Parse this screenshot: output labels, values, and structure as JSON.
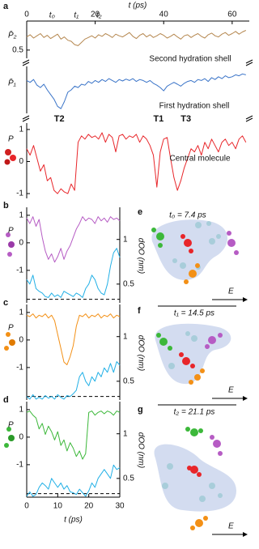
{
  "chart_data": [
    {
      "type": "line",
      "panel": "a",
      "xlabel": "t (ps)",
      "ylabel": "P̄₂",
      "xlim": [
        0,
        65
      ],
      "xticks": [
        0,
        20,
        40,
        60
      ],
      "ylim": [
        0.35,
        1.0
      ],
      "yticks": [
        0.5
      ],
      "annotations": [
        {
          "text": "t₀",
          "x": 7.4
        },
        {
          "text": "t₁",
          "x": 14.5
        },
        {
          "text": "t₂",
          "x": 21.1
        }
      ],
      "x": [
        0,
        1,
        2,
        3,
        4,
        5,
        6,
        7,
        8,
        9,
        10,
        11,
        12,
        13,
        14,
        15,
        16,
        17,
        18,
        19,
        20,
        21,
        22,
        23,
        24,
        25,
        26,
        27,
        28,
        29,
        30,
        31,
        32,
        33,
        34,
        35,
        36,
        37,
        38,
        39,
        40,
        41,
        42,
        43,
        44,
        45,
        46,
        47,
        48,
        49,
        50,
        51,
        52,
        53,
        54,
        55,
        56,
        57,
        58,
        59,
        60,
        61,
        62,
        63,
        64
      ],
      "series": [
        {
          "name": "Second hydration shell",
          "color": "#b5874f",
          "values": [
            0.74,
            0.78,
            0.72,
            0.76,
            0.8,
            0.73,
            0.77,
            0.71,
            0.75,
            0.79,
            0.7,
            0.74,
            0.68,
            0.66,
            0.6,
            0.58,
            0.64,
            0.7,
            0.73,
            0.76,
            0.72,
            0.78,
            0.75,
            0.8,
            0.77,
            0.73,
            0.79,
            0.76,
            0.74,
            0.78,
            0.82,
            0.75,
            0.71,
            0.77,
            0.8,
            0.74,
            0.78,
            0.73,
            0.76,
            0.8,
            0.77,
            0.72,
            0.75,
            0.79,
            0.74,
            0.7,
            0.76,
            0.78,
            0.73,
            0.77,
            0.8,
            0.75,
            0.72,
            0.78,
            0.81,
            0.76,
            0.74,
            0.79,
            0.82,
            0.77,
            0.8,
            0.84,
            0.79,
            0.83,
            0.86
          ]
        }
      ]
    },
    {
      "type": "line",
      "ylabel": "P̄₁",
      "xlim": [
        0,
        65
      ],
      "ylim": [
        0,
        1
      ],
      "x": [
        0,
        1,
        2,
        3,
        4,
        5,
        6,
        7,
        8,
        9,
        10,
        11,
        12,
        13,
        14,
        15,
        16,
        17,
        18,
        19,
        20,
        21,
        22,
        23,
        24,
        25,
        26,
        27,
        28,
        29,
        30,
        31,
        32,
        33,
        34,
        35,
        36,
        37,
        38,
        39,
        40,
        41,
        42,
        43,
        44,
        45,
        46,
        47,
        48,
        49,
        50,
        51,
        52,
        53,
        54,
        55,
        56,
        57,
        58,
        59,
        60,
        61,
        62,
        63,
        64
      ],
      "series": [
        {
          "name": "First hydration shell",
          "color": "#3a74c8",
          "values": [
            0.7,
            0.66,
            0.72,
            0.6,
            0.55,
            0.62,
            0.5,
            0.4,
            0.3,
            0.15,
            0.1,
            0.25,
            0.45,
            0.5,
            0.58,
            0.55,
            0.62,
            0.6,
            0.68,
            0.64,
            0.7,
            0.66,
            0.72,
            0.68,
            0.74,
            0.7,
            0.66,
            0.72,
            0.69,
            0.73,
            0.7,
            0.74,
            0.68,
            0.72,
            0.7,
            0.66,
            0.7,
            0.64,
            0.6,
            0.55,
            0.48,
            0.58,
            0.62,
            0.66,
            0.62,
            0.58,
            0.64,
            0.68,
            0.7,
            0.66,
            0.72,
            0.7,
            0.74,
            0.68,
            0.76,
            0.72,
            0.78,
            0.74,
            0.8,
            0.76,
            0.78,
            0.82,
            0.8,
            0.84,
            0.82
          ]
        }
      ]
    },
    {
      "type": "line",
      "ylabel": "P",
      "xlim": [
        0,
        65
      ],
      "ylim": [
        -1.15,
        1.2
      ],
      "yticks": [
        -1,
        0,
        1
      ],
      "annotations": [
        {
          "text": "T2",
          "x": 9.5
        },
        {
          "text": "T1",
          "x": 38.5
        },
        {
          "text": "T3",
          "x": 46.5
        }
      ],
      "x": [
        0,
        1,
        2,
        3,
        4,
        5,
        6,
        7,
        8,
        9,
        10,
        11,
        12,
        13,
        14,
        15,
        16,
        17,
        18,
        19,
        20,
        21,
        22,
        23,
        24,
        25,
        26,
        27,
        28,
        29,
        30,
        31,
        32,
        33,
        34,
        35,
        36,
        37,
        38,
        39,
        40,
        41,
        42,
        43,
        44,
        45,
        46,
        47,
        48,
        49,
        50,
        51,
        52,
        53,
        54,
        55,
        56,
        57,
        58,
        59,
        60,
        61,
        62,
        63,
        64
      ],
      "series": [
        {
          "name": "Central molecule",
          "color": "#e8262a",
          "values": [
            0.4,
            0.2,
            0.5,
            0.1,
            -0.3,
            -0.1,
            -0.6,
            -0.5,
            -0.9,
            -1,
            -0.85,
            -0.95,
            -1,
            -0.7,
            -0.9,
            0.6,
            0.8,
            0.7,
            0.85,
            0.75,
            0.8,
            0.7,
            0.9,
            0.6,
            0.85,
            0.75,
            0.3,
            0.8,
            0.85,
            0.7,
            0.8,
            0.75,
            0.85,
            0.6,
            0.8,
            0.7,
            0.5,
            0.2,
            -0.8,
            0.3,
            0.7,
            0.75,
            0.1,
            -0.5,
            -0.9,
            -0.6,
            -0.2,
            0.1,
            0.4,
            0.3,
            0.5,
            0.2,
            0.6,
            0.4,
            0.7,
            0.5,
            0.3,
            0.6,
            0.7,
            0.5,
            0.6,
            0.4,
            0.7,
            0.8,
            0.6
          ]
        }
      ]
    },
    {
      "type": "line",
      "panel": "b",
      "ylabel": "P",
      "y2label": "dOO (nm)",
      "xlim": [
        0,
        30
      ],
      "ylim": [
        -2.18,
        1.29
      ],
      "yticks": [
        -1,
        0,
        1
      ],
      "y2lim": [
        0.29,
        1.36
      ],
      "y2ticks": [
        0.5,
        1
      ],
      "hline": 0.33,
      "x": [
        0,
        1,
        2,
        3,
        4,
        5,
        6,
        7,
        8,
        9,
        10,
        11,
        12,
        13,
        14,
        15,
        16,
        17,
        18,
        19,
        20,
        21,
        22,
        23,
        24,
        25,
        26,
        27,
        28,
        29,
        30
      ],
      "series": [
        {
          "color": "#b65cc4",
          "values": [
            0.9,
            0.7,
            0.95,
            0.6,
            0.85,
            0.2,
            -0.3,
            -0.6,
            -0.4,
            -0.7,
            -0.5,
            -0.2,
            -0.6,
            -0.3,
            -0.1,
            0.2,
            0.5,
            0.7,
            0.95,
            0.8,
            0.9,
            0.85,
            0.7,
            0.95,
            0.8,
            0.9,
            0.75,
            0.95,
            0.85,
            0.9,
            0.8
          ]
        },
        {
          "color": "#22b0e6",
          "axis": "y2",
          "values": [
            0.55,
            0.5,
            0.6,
            0.45,
            0.42,
            0.4,
            0.36,
            0.35,
            0.4,
            0.36,
            0.38,
            0.35,
            0.42,
            0.4,
            0.38,
            0.36,
            0.4,
            0.38,
            0.35,
            0.45,
            0.5,
            0.6,
            0.55,
            0.45,
            0.4,
            0.38,
            0.5,
            0.7,
            0.85,
            0.9,
            0.8
          ]
        }
      ]
    },
    {
      "type": "line",
      "panel": "c",
      "ylabel": "P",
      "y2label": "dOO (nm)",
      "xlim": [
        0,
        30
      ],
      "ylim": [
        -2.18,
        1.29
      ],
      "yticks": [
        -1,
        0,
        1
      ],
      "y2lim": [
        0.29,
        1.36
      ],
      "y2ticks": [
        0.5,
        1
      ],
      "hline": 0.33,
      "x": [
        0,
        1,
        2,
        3,
        4,
        5,
        6,
        7,
        8,
        9,
        10,
        11,
        12,
        13,
        14,
        15,
        16,
        17,
        18,
        19,
        20,
        21,
        22,
        23,
        24,
        25,
        26,
        27,
        28,
        29,
        30
      ],
      "series": [
        {
          "color": "#f39016",
          "values": [
            0.9,
            0.85,
            0.95,
            0.8,
            0.9,
            0.85,
            0.95,
            0.8,
            0.9,
            0.7,
            0.2,
            -0.3,
            -0.8,
            -0.9,
            -0.6,
            -0.2,
            0.5,
            0.9,
            0.85,
            0.95,
            0.8,
            0.9,
            0.85,
            0.95,
            0.8,
            0.9,
            0.85,
            0.95,
            0.8,
            0.9,
            0.85
          ]
        },
        {
          "color": "#22b0e6",
          "axis": "y2",
          "values": [
            0.33,
            0.3,
            0.35,
            0.3,
            0.32,
            0.3,
            0.34,
            0.31,
            0.33,
            0.3,
            0.35,
            0.32,
            0.3,
            0.34,
            0.33,
            0.36,
            0.4,
            0.55,
            0.6,
            0.5,
            0.45,
            0.55,
            0.5,
            0.6,
            0.55,
            0.65,
            0.6,
            0.7,
            0.6,
            0.72,
            0.68
          ]
        }
      ]
    },
    {
      "type": "line",
      "panel": "d",
      "ylabel": "P",
      "y2label": "dOO (nm)",
      "xlabel": "t (ps)",
      "xlim": [
        0,
        30
      ],
      "xticks": [
        0,
        10,
        20,
        30
      ],
      "ylim": [
        -2.18,
        1.29
      ],
      "yticks": [
        -1,
        0,
        1
      ],
      "y2lim": [
        0.29,
        1.36
      ],
      "y2ticks": [
        0.5,
        1
      ],
      "hline": 0.33,
      "x": [
        0,
        1,
        2,
        3,
        4,
        5,
        6,
        7,
        8,
        9,
        10,
        11,
        12,
        13,
        14,
        15,
        16,
        17,
        18,
        19,
        20,
        21,
        22,
        23,
        24,
        25,
        26,
        27,
        28,
        29,
        30
      ],
      "series": [
        {
          "color": "#3cb83a",
          "values": [
            0.9,
            0.95,
            0.8,
            0.7,
            0.3,
            0.5,
            0.1,
            0.4,
            0.2,
            -0.1,
            0.2,
            -0.3,
            -0.1,
            -0.5,
            -0.2,
            -0.4,
            -0.7,
            -0.5,
            -0.8,
            -0.6,
            0.9,
            0.95,
            0.8,
            0.9,
            0.95,
            0.85,
            0.95,
            0.9,
            0.8,
            0.95,
            0.9
          ]
        },
        {
          "color": "#22b0e6",
          "axis": "y2",
          "values": [
            0.3,
            0.35,
            0.3,
            0.32,
            0.4,
            0.45,
            0.42,
            0.38,
            0.5,
            0.45,
            0.4,
            0.45,
            0.38,
            0.42,
            0.35,
            0.34,
            0.32,
            0.38,
            0.34,
            0.3,
            0.36,
            0.45,
            0.4,
            0.5,
            0.55,
            0.6,
            0.55,
            0.5,
            0.65,
            0.6,
            0.62
          ]
        }
      ]
    }
  ],
  "diagrams": [
    {
      "panel": "e",
      "time": "t₀ = 7.4 ps",
      "field": "E"
    },
    {
      "panel": "f",
      "time": "t₁ = 14.5 ps",
      "field": "E"
    },
    {
      "panel": "g",
      "time": "t₂ = 21.1 ps",
      "field": "E"
    }
  ]
}
